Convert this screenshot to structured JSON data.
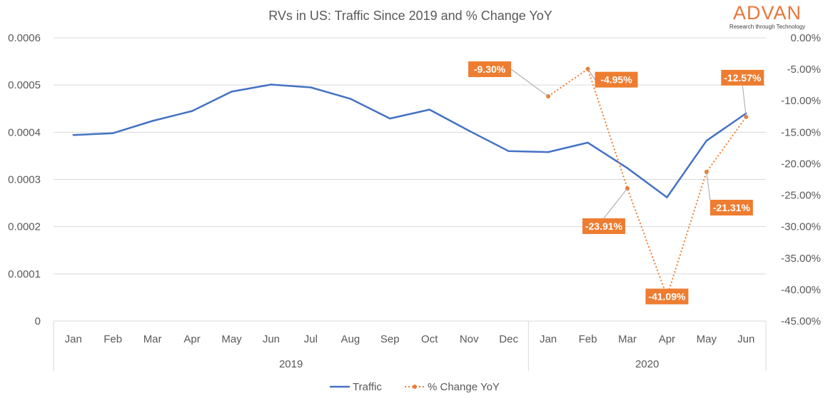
{
  "chart_data": {
    "type": "line",
    "title": "RVs in US: Traffic Since 2019 and % Change YoY",
    "months": [
      "Jan",
      "Feb",
      "Mar",
      "Apr",
      "May",
      "Jun",
      "Jul",
      "Aug",
      "Sep",
      "Oct",
      "Nov",
      "Dec",
      "Jan",
      "Feb",
      "Mar",
      "Apr",
      "May",
      "Jun"
    ],
    "year_groups": [
      {
        "label": "2019",
        "count": 12
      },
      {
        "label": "2020",
        "count": 6
      }
    ],
    "y_left": {
      "min": 0,
      "max": 0.0006,
      "ticks": [
        "0",
        "0.0001",
        "0.0002",
        "0.0003",
        "0.0004",
        "0.0005",
        "0.0006"
      ]
    },
    "y_right": {
      "min": -45,
      "max": 0,
      "ticks": [
        "0.00%",
        "-5.00%",
        "-10.00%",
        "-15.00%",
        "-20.00%",
        "-25.00%",
        "-30.00%",
        "-35.00%",
        "-40.00%",
        "-45.00%"
      ]
    },
    "series": [
      {
        "name": "Traffic",
        "axis": "left",
        "color": "#4472c4",
        "values": [
          0.000394,
          0.000398,
          0.000424,
          0.000445,
          0.000486,
          0.000501,
          0.000495,
          0.000471,
          0.000429,
          0.000448,
          0.000403,
          0.00036,
          0.000358,
          0.000378,
          0.000324,
          0.000262,
          0.000382,
          0.00044
        ]
      },
      {
        "name": "% Change YoY",
        "axis": "right",
        "color": "#ed7d31",
        "start_index": 12,
        "values": [
          -9.3,
          -4.95,
          -23.91,
          -41.09,
          -21.31,
          -12.57
        ],
        "labels": [
          "-9.30%",
          "-4.95%",
          "-23.91%",
          "-41.09%",
          "-21.31%",
          "-12.57%"
        ]
      }
    ],
    "legend": [
      "Traffic",
      "% Change YoY"
    ]
  },
  "logo": {
    "name": "ADVAN",
    "tagline": "Research through Technology"
  }
}
